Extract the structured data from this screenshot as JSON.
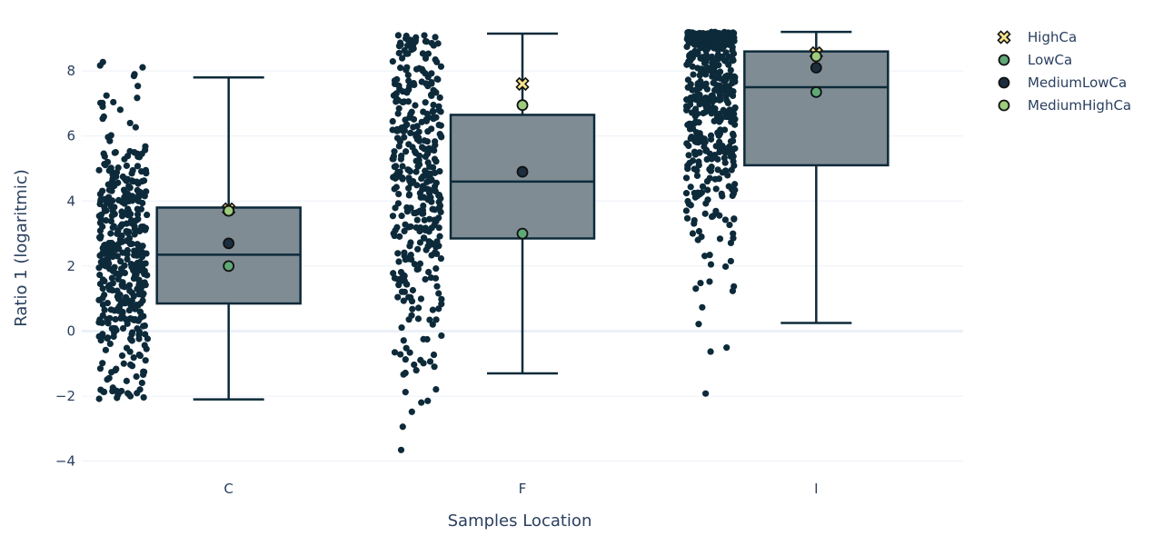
{
  "chart_data": {
    "type": "box",
    "xlabel": "Samples Location",
    "ylabel": "Ratio 1 (logaritmic)",
    "ylim": [
      -4.4,
      9.4
    ],
    "yticks": [
      -4,
      -2,
      0,
      2,
      4,
      6,
      8
    ],
    "ytick_labels": [
      "−4",
      "−2",
      "0",
      "2",
      "4",
      "6",
      "8"
    ],
    "categories": [
      "C",
      "F",
      "I"
    ],
    "grid": true,
    "legend_position": "top-right",
    "colors": {
      "box_fill": "#7f8c94",
      "box_line": "#0d2a3a",
      "points": "#0d2a3a",
      "HighCa": "#f6e58d",
      "LowCa": "#5fa877",
      "MediumLowCa": "#1c2e3d",
      "MediumHighCa": "#9ccc7c"
    },
    "boxes": [
      {
        "category": "C",
        "lower_whisker": -2.1,
        "q1": 0.85,
        "median": 2.35,
        "q3": 3.8,
        "upper_whisker": 7.8,
        "points_range": [
          -2.1,
          8.3
        ],
        "points_count": 420
      },
      {
        "category": "F",
        "lower_whisker": -1.3,
        "q1": 2.85,
        "median": 4.6,
        "q3": 6.65,
        "upper_whisker": 9.15,
        "points_range": [
          -3.75,
          9.15
        ],
        "points_count": 380
      },
      {
        "category": "I",
        "lower_whisker": 0.25,
        "q1": 5.1,
        "median": 7.5,
        "q3": 8.6,
        "upper_whisker": 9.2,
        "points_range": [
          -2.45,
          9.2
        ],
        "points_count": 480
      }
    ],
    "series": [
      {
        "name": "HighCa",
        "marker": "x",
        "values": [
          3.75,
          7.6,
          8.55
        ]
      },
      {
        "name": "LowCa",
        "marker": "circle",
        "values": [
          2.0,
          3.0,
          7.35
        ]
      },
      {
        "name": "MediumLowCa",
        "marker": "circle",
        "values": [
          2.7,
          4.9,
          8.1
        ]
      },
      {
        "name": "MediumHighCa",
        "marker": "circle",
        "values": [
          3.7,
          6.95,
          8.45
        ]
      }
    ]
  }
}
